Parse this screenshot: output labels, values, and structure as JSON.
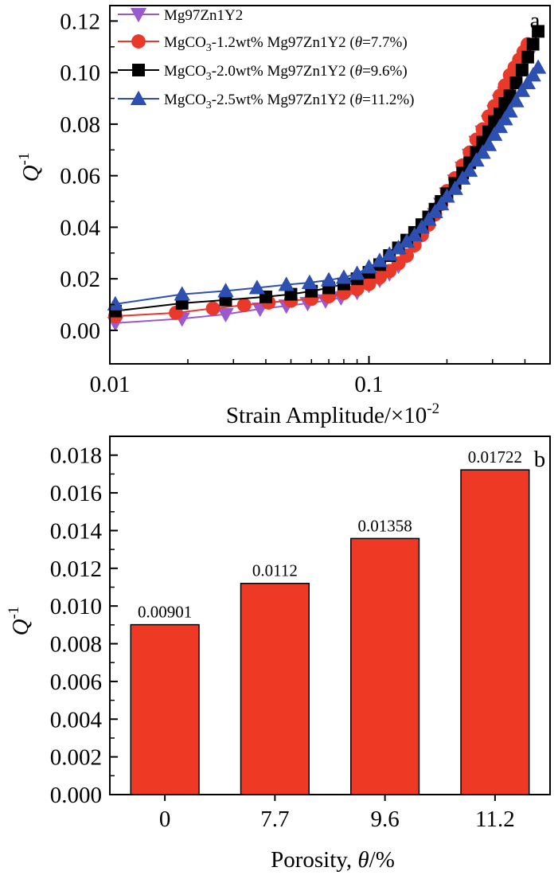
{
  "chart_data": [
    {
      "panel_label": "a",
      "type": "line",
      "xlabel": "Strain Amplitude/×10",
      "xlabel_sup": "-2",
      "ylabel": "Q",
      "ylabel_sup": "-1",
      "x_scale": "log",
      "xlim": [
        0.01,
        0.5
      ],
      "ylim": [
        -0.013,
        0.126
      ],
      "x_ticks": [
        0.01,
        0.1
      ],
      "x_tick_labels": [
        "0.01",
        "0.1"
      ],
      "y_ticks": [
        0.0,
        0.02,
        0.04,
        0.06,
        0.08,
        0.1,
        0.12
      ],
      "y_tick_labels": [
        "0.00",
        "0.02",
        "0.04",
        "0.06",
        "0.08",
        "0.10",
        "0.12"
      ],
      "grid": false,
      "legend_position": "top-left",
      "series": [
        {
          "legend_parts": [
            "Mg97Zn1Y2"
          ],
          "color": "#9b59d0",
          "marker": "triangle-down",
          "x": [
            0.0105,
            0.019,
            0.028,
            0.038,
            0.048,
            0.058,
            0.068,
            0.078,
            0.09,
            0.1,
            0.11,
            0.12,
            0.13,
            0.14,
            0.15,
            0.16,
            0.17,
            0.18,
            0.19,
            0.2,
            0.215,
            0.23,
            0.245,
            0.26,
            0.275,
            0.29,
            0.305,
            0.32,
            0.335,
            0.35,
            0.365,
            0.38,
            0.395,
            0.41
          ],
          "y": [
            0.0028,
            0.0045,
            0.0062,
            0.0083,
            0.0095,
            0.0105,
            0.0115,
            0.0127,
            0.0148,
            0.0175,
            0.0195,
            0.022,
            0.025,
            0.029,
            0.033,
            0.037,
            0.041,
            0.045,
            0.049,
            0.053,
            0.058,
            0.063,
            0.068,
            0.073,
            0.077,
            0.081,
            0.085,
            0.089,
            0.092,
            0.095,
            0.098,
            0.1,
            0.103,
            0.106
          ]
        },
        {
          "legend_parts": [
            "MgCO",
            "3",
            "-1.2wt% Mg97Zn1Y2 (",
            "θ",
            "=7.7%)"
          ],
          "color": "#e8392a",
          "marker": "circle",
          "x": [
            0.0105,
            0.018,
            0.025,
            0.033,
            0.041,
            0.05,
            0.06,
            0.07,
            0.08,
            0.09,
            0.1,
            0.11,
            0.12,
            0.13,
            0.14,
            0.15,
            0.16,
            0.17,
            0.18,
            0.19,
            0.2,
            0.215,
            0.23,
            0.245,
            0.26,
            0.275,
            0.29,
            0.305,
            0.32,
            0.335,
            0.35,
            0.365,
            0.38,
            0.395,
            0.41
          ],
          "y": [
            0.0055,
            0.0068,
            0.0085,
            0.0098,
            0.0108,
            0.0115,
            0.0122,
            0.0132,
            0.0145,
            0.016,
            0.018,
            0.0205,
            0.023,
            0.026,
            0.029,
            0.033,
            0.037,
            0.041,
            0.045,
            0.049,
            0.054,
            0.059,
            0.064,
            0.069,
            0.074,
            0.078,
            0.083,
            0.087,
            0.091,
            0.095,
            0.099,
            0.102,
            0.105,
            0.108,
            0.111
          ]
        },
        {
          "legend_parts": [
            "MgCO",
            "3",
            "-2.0wt% Mg97Zn1Y2 (",
            "θ",
            "=9.6%)"
          ],
          "color": "#000000",
          "marker": "square",
          "x": [
            0.0105,
            0.019,
            0.028,
            0.04,
            0.05,
            0.06,
            0.07,
            0.08,
            0.09,
            0.1,
            0.11,
            0.12,
            0.13,
            0.14,
            0.15,
            0.16,
            0.17,
            0.18,
            0.19,
            0.2,
            0.215,
            0.23,
            0.245,
            0.26,
            0.275,
            0.29,
            0.305,
            0.32,
            0.335,
            0.35,
            0.37,
            0.39,
            0.41,
            0.43,
            0.45
          ],
          "y": [
            0.0075,
            0.0105,
            0.0118,
            0.013,
            0.014,
            0.0152,
            0.0165,
            0.018,
            0.02,
            0.0225,
            0.0255,
            0.029,
            0.032,
            0.035,
            0.038,
            0.041,
            0.044,
            0.047,
            0.05,
            0.053,
            0.057,
            0.061,
            0.065,
            0.069,
            0.073,
            0.077,
            0.081,
            0.084,
            0.088,
            0.091,
            0.096,
            0.101,
            0.106,
            0.111,
            0.116
          ]
        },
        {
          "legend_parts": [
            "MgCO",
            "3",
            "-2.5wt% Mg97Zn1Y2 (",
            "θ",
            "=11.2%)"
          ],
          "color": "#2d4fb0",
          "marker": "triangle-up",
          "x": [
            0.0105,
            0.019,
            0.028,
            0.037,
            0.048,
            0.059,
            0.07,
            0.08,
            0.09,
            0.1,
            0.11,
            0.12,
            0.13,
            0.14,
            0.15,
            0.16,
            0.17,
            0.18,
            0.19,
            0.2,
            0.215,
            0.23,
            0.245,
            0.26,
            0.275,
            0.29,
            0.305,
            0.32,
            0.335,
            0.35,
            0.37,
            0.39,
            0.41,
            0.43,
            0.45
          ],
          "y": [
            0.0102,
            0.014,
            0.0153,
            0.0165,
            0.0177,
            0.0185,
            0.0195,
            0.0205,
            0.022,
            0.0245,
            0.027,
            0.0295,
            0.032,
            0.0345,
            0.037,
            0.04,
            0.043,
            0.046,
            0.049,
            0.052,
            0.055,
            0.059,
            0.062,
            0.066,
            0.069,
            0.072,
            0.076,
            0.079,
            0.082,
            0.085,
            0.089,
            0.093,
            0.096,
            0.099,
            0.102
          ]
        }
      ]
    },
    {
      "panel_label": "b",
      "type": "bar",
      "xlabel_parts": [
        "Porosity, ",
        "θ",
        "/%"
      ],
      "ylabel": "Q",
      "ylabel_sup": "-1",
      "categories": [
        "0",
        "7.7",
        "9.6",
        "11.2"
      ],
      "values": [
        0.00901,
        0.0112,
        0.01358,
        0.01722
      ],
      "data_labels": [
        "0.00901",
        "0.0112",
        "0.01358",
        "0.01722"
      ],
      "ylim": [
        0,
        0.019
      ],
      "y_ticks": [
        0.0,
        0.002,
        0.004,
        0.006,
        0.008,
        0.01,
        0.012,
        0.014,
        0.016,
        0.018
      ],
      "y_tick_labels": [
        "0.000",
        "0.002",
        "0.004",
        "0.006",
        "0.008",
        "0.010",
        "0.012",
        "0.014",
        "0.016",
        "0.018"
      ],
      "bar_color": "#ee3a24",
      "grid": false
    }
  ]
}
